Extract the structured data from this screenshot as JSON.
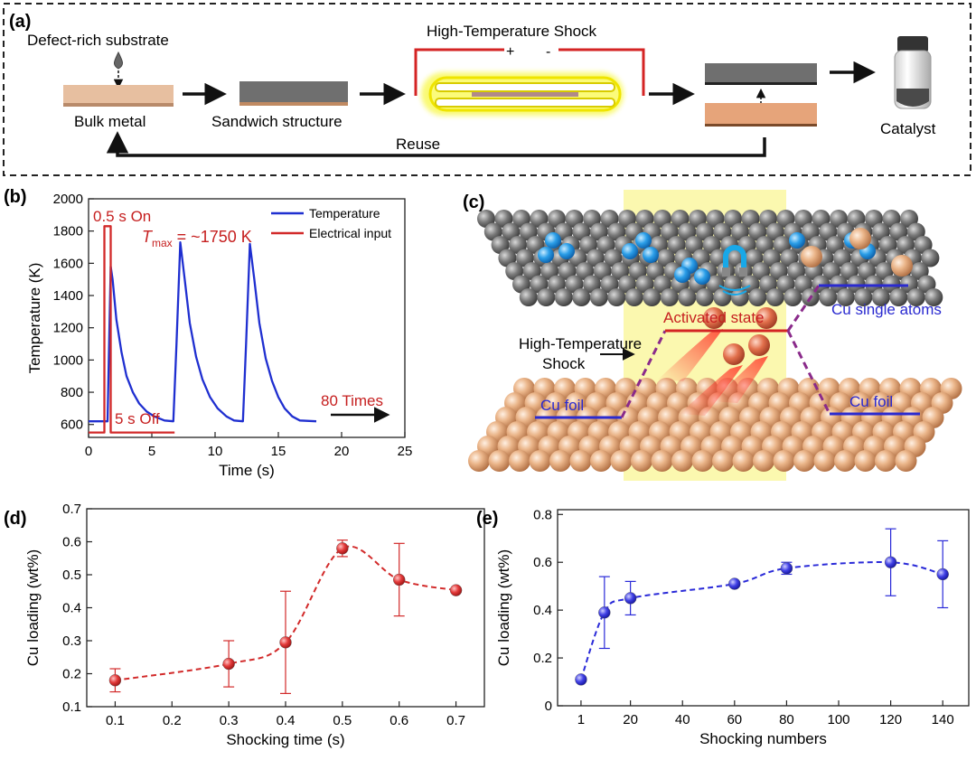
{
  "panel_a": {
    "label": "(a)",
    "defect_substrate": "Defect-rich substrate",
    "bulk_metal": "Bulk metal",
    "sandwich": "Sandwich structure",
    "hts": "High-Temperature Shock",
    "plus": "+",
    "minus": "-",
    "catalyst": "Catalyst",
    "reuse": "Reuse"
  },
  "panel_b": {
    "label": "(b)",
    "on_label": "0.5 s On",
    "off_label": "5 s Off",
    "tmax_T": "T",
    "tmax_sub": "max",
    "tmax_value": " = ~1750 K",
    "times_label": "80 Times"
  },
  "panel_c": {
    "label": "(c)",
    "activated": "Activated state",
    "hts_line1": "High-Temperature",
    "hts_line2": "Shock",
    "cu_foil_left": "Cu foil",
    "cu_foil_right": "Cu foil",
    "cu_single": "Cu single atoms"
  },
  "panel_d": {
    "label": "(d)"
  },
  "panel_e": {
    "label": "(e)"
  },
  "colors": {
    "blue": "#1f2fd0",
    "red": "#d22a2a",
    "copper": "#e8a779",
    "gray": "#6e6e6e"
  },
  "chart_data": [
    {
      "panel": "b",
      "type": "line",
      "xlabel": "Time (s)",
      "ylabel": "Temperature (K)",
      "xlim": [
        0,
        25
      ],
      "ylim": [
        520,
        2000
      ],
      "xticks": [
        0,
        5,
        10,
        15,
        20,
        25
      ],
      "yticks": [
        600,
        800,
        1000,
        1200,
        1400,
        1600,
        1800,
        2000
      ],
      "legend": "top-right",
      "series": [
        {
          "name": "Temperature",
          "color": "#1f2fd0",
          "points": [
            [
              0,
              620
            ],
            [
              1.5,
              620
            ],
            [
              1.75,
              1580
            ],
            [
              1.9,
              1500
            ],
            [
              2.2,
              1250
            ],
            [
              2.6,
              1050
            ],
            [
              3.0,
              900
            ],
            [
              3.5,
              800
            ],
            [
              4.0,
              730
            ],
            [
              4.6,
              680
            ],
            [
              5.2,
              650
            ],
            [
              6.0,
              625
            ],
            [
              6.7,
              620
            ],
            [
              6.95,
              1100
            ],
            [
              7.25,
              1730
            ],
            [
              7.6,
              1500
            ],
            [
              8.0,
              1230
            ],
            [
              8.5,
              1020
            ],
            [
              9.0,
              880
            ],
            [
              9.6,
              770
            ],
            [
              10.2,
              700
            ],
            [
              10.9,
              650
            ],
            [
              11.5,
              625
            ],
            [
              12.2,
              620
            ],
            [
              12.45,
              1100
            ],
            [
              12.75,
              1720
            ],
            [
              13.1,
              1500
            ],
            [
              13.5,
              1230
            ],
            [
              14.0,
              1010
            ],
            [
              14.5,
              870
            ],
            [
              15.0,
              770
            ],
            [
              15.5,
              700
            ],
            [
              16.1,
              650
            ],
            [
              16.7,
              625
            ],
            [
              18.0,
              620
            ]
          ]
        },
        {
          "name": "Electrical input",
          "color": "#d22a2a",
          "points": [
            [
              0,
              550
            ],
            [
              1.25,
              550
            ],
            [
              1.25,
              1830
            ],
            [
              1.75,
              1830
            ],
            [
              1.75,
              550
            ],
            [
              6.8,
              550
            ]
          ]
        }
      ]
    },
    {
      "panel": "d",
      "type": "scatter",
      "xlabel": "Shocking time (s)",
      "ylabel": "Cu loading (wt%)",
      "xlim": [
        0.05,
        0.75
      ],
      "ylim": [
        0.1,
        0.7
      ],
      "xticks": [
        0.1,
        0.2,
        0.3,
        0.4,
        0.5,
        0.6,
        0.7
      ],
      "yticks": [
        0.1,
        0.2,
        0.3,
        0.4,
        0.5,
        0.6,
        0.7
      ],
      "color": "#d22a2a",
      "x": [
        0.1,
        0.3,
        0.4,
        0.5,
        0.6,
        0.7
      ],
      "y": [
        0.18,
        0.23,
        0.295,
        0.58,
        0.485,
        0.453
      ],
      "err": [
        0.035,
        0.07,
        0.155,
        0.025,
        0.11,
        0.0
      ]
    },
    {
      "panel": "e",
      "type": "scatter",
      "xlabel": "Shocking numbers",
      "ylabel": "Cu loading (wt%)",
      "xlim": [
        -8,
        150
      ],
      "ylim": [
        0.0,
        0.82
      ],
      "xticks": [
        1,
        20,
        40,
        60,
        80,
        100,
        120,
        140
      ],
      "yticks": [
        0.0,
        0.2,
        0.4,
        0.6,
        0.8
      ],
      "color": "#2a2ad8",
      "x": [
        1,
        10,
        20,
        60,
        80,
        120,
        140
      ],
      "y": [
        0.11,
        0.39,
        0.45,
        0.51,
        0.575,
        0.6,
        0.55
      ],
      "err": [
        0.0,
        0.15,
        0.07,
        0.01,
        0.025,
        0.14,
        0.14
      ]
    }
  ]
}
